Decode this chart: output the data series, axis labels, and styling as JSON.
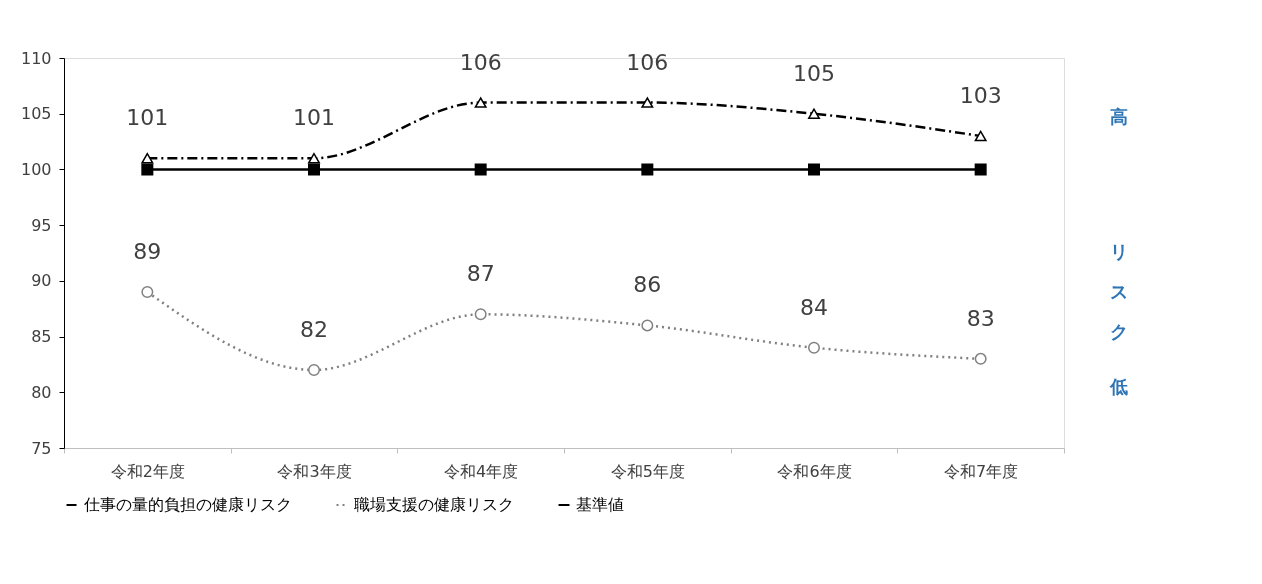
{
  "chart_data": {
    "type": "line",
    "categories": [
      "令和2年度",
      "令和3年度",
      "令和4年度",
      "令和5年度",
      "令和6年度",
      "令和7年度"
    ],
    "series": [
      {
        "name": "仕事の量的負担の健康リスク",
        "color": "#000000",
        "marker": "triangle",
        "line_style": "dashed",
        "values": [
          101,
          101,
          106,
          106,
          105,
          103
        ],
        "value_labels": [
          "101",
          "101",
          "106",
          "106",
          "105",
          "103"
        ]
      },
      {
        "name": "職場支援の健康リスク",
        "color": "#808080",
        "marker": "circle",
        "line_style": "dotted",
        "values": [
          89,
          82,
          87,
          86,
          84,
          83
        ],
        "value_labels": [
          "89",
          "82",
          "87",
          "86",
          "84",
          "83"
        ]
      },
      {
        "name": "基準値",
        "color": "#000000",
        "marker": "square",
        "line_style": "solid",
        "values": [
          100,
          100,
          100,
          100,
          100,
          100
        ]
      }
    ],
    "ylim": [
      75,
      110
    ],
    "yticks": [
      75,
      80,
      85,
      90,
      95,
      100,
      105,
      110
    ],
    "grid": false,
    "legend": "bottom",
    "annotations": [
      "高",
      "リスク",
      "低"
    ]
  }
}
